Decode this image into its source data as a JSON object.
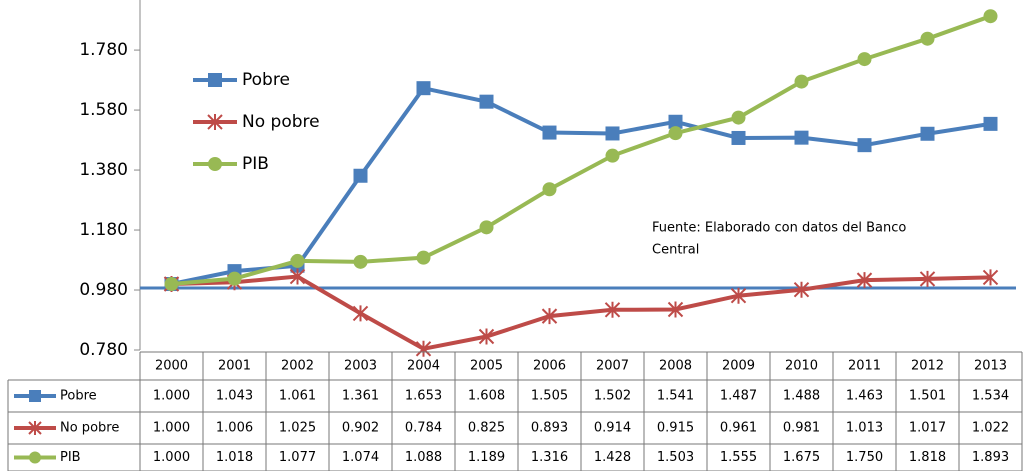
{
  "chart_data": {
    "type": "line",
    "categories": [
      "2000",
      "2001",
      "2002",
      "2003",
      "2004",
      "2005",
      "2006",
      "2007",
      "2008",
      "2009",
      "2010",
      "2011",
      "2012",
      "2013"
    ],
    "series": [
      {
        "name": "Pobre",
        "color": "#4a7ebb",
        "marker": "square",
        "values": [
          1.0,
          1.043,
          1.061,
          1.361,
          1.653,
          1.608,
          1.505,
          1.502,
          1.541,
          1.487,
          1.488,
          1.463,
          1.501,
          1.534
        ],
        "value_labels": [
          "1.000",
          "1.043",
          "1.061",
          "1.361",
          "1.653",
          "1.608",
          "1.505",
          "1.502",
          "1.541",
          "1.487",
          "1.488",
          "1.463",
          "1.501",
          "1.534"
        ]
      },
      {
        "name": "No pobre",
        "color": "#be4b48",
        "marker": "star",
        "values": [
          1.0,
          1.006,
          1.025,
          0.902,
          0.784,
          0.825,
          0.893,
          0.914,
          0.915,
          0.961,
          0.981,
          1.013,
          1.017,
          1.022
        ],
        "value_labels": [
          "1.000",
          "1.006",
          "1.025",
          "0.902",
          "0.784",
          "0.825",
          "0.893",
          "0.914",
          "0.915",
          "0.961",
          "0.981",
          "1.013",
          "1.017",
          "1.022"
        ]
      },
      {
        "name": "PIB",
        "color": "#98b954",
        "marker": "circle",
        "values": [
          1.0,
          1.018,
          1.077,
          1.074,
          1.088,
          1.189,
          1.316,
          1.428,
          1.503,
          1.555,
          1.675,
          1.75,
          1.818,
          1.893
        ],
        "value_labels": [
          "1.000",
          "1.018",
          "1.077",
          "1.074",
          "1.088",
          "1.189",
          "1.316",
          "1.428",
          "1.503",
          "1.555",
          "1.675",
          "1.750",
          "1.818",
          "1.893"
        ]
      }
    ],
    "ylim": [
      0.78,
      1.947
    ],
    "yticks": [
      {
        "value": 0.78,
        "label": "0.780"
      },
      {
        "value": 0.98,
        "label": "0.980"
      },
      {
        "value": 1.18,
        "label": "1.180"
      },
      {
        "value": 1.38,
        "label": "1.380"
      },
      {
        "value": 1.58,
        "label": "1.580"
      },
      {
        "value": 1.78,
        "label": "1.780"
      }
    ],
    "annotation": [
      "Fuente: Elaborado con datos del Banco",
      "Central"
    ],
    "data_table": true
  }
}
